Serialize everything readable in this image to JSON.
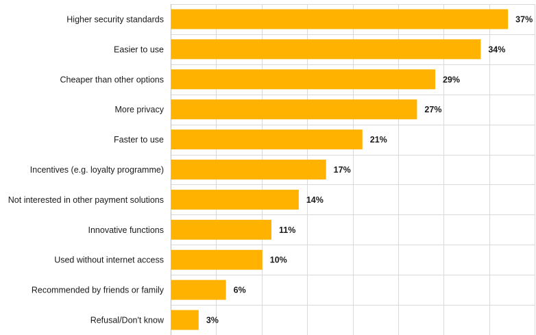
{
  "chart_data": {
    "type": "bar",
    "orientation": "horizontal",
    "categories": [
      "Higher security standards",
      "Easier to use",
      "Cheaper than other options",
      "More privacy",
      "Faster to use",
      "Incentives (e.g. loyalty programme)",
      "Not interested in other payment solutions",
      "Innovative functions",
      "Used without internet access",
      "Recommended by friends or family",
      "Refusal/Don't know"
    ],
    "values": [
      37,
      34,
      29,
      27,
      21,
      17,
      14,
      11,
      10,
      6,
      3
    ],
    "value_labels": [
      "37%",
      "34%",
      "29%",
      "27%",
      "21%",
      "17%",
      "14%",
      "11%",
      "10%",
      "6%",
      "3%"
    ],
    "title": "",
    "xlabel": "",
    "ylabel": "",
    "xlim": [
      0,
      40
    ],
    "grid": true,
    "legend": "none",
    "bar_color": "#FFB300",
    "grid_color": "#d9d9d9"
  }
}
